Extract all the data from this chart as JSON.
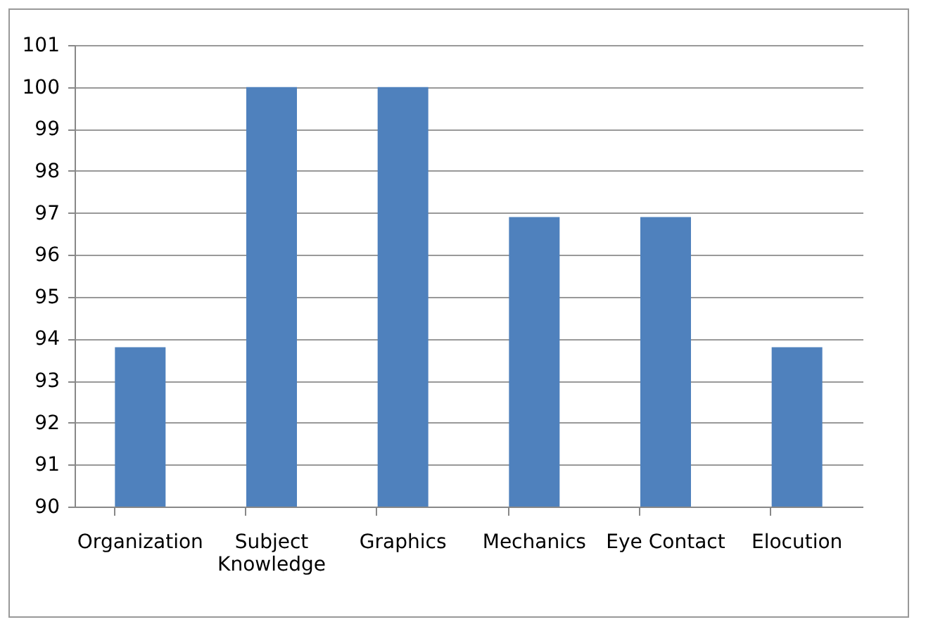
{
  "chart_data": {
    "type": "bar",
    "categories": [
      "Organization",
      "Subject Knowledge",
      "Graphics",
      "Mechanics",
      "Eye Contact",
      "Elocution"
    ],
    "values": [
      93.8,
      100,
      100,
      96.9,
      96.9,
      93.8
    ],
    "color": "#4f81bd",
    "ylim": [
      90,
      101
    ],
    "yticks": [
      90,
      91,
      92,
      93,
      94,
      95,
      96,
      97,
      98,
      99,
      100,
      101
    ],
    "grid": "y"
  }
}
